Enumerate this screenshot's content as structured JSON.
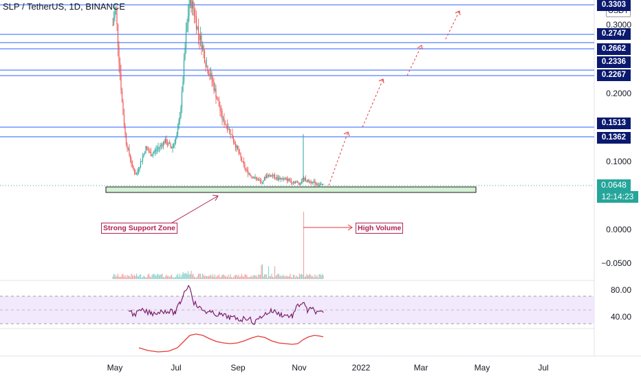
{
  "header": {
    "title": "SLP / TetherUS, 1D, BINANCE"
  },
  "currency": {
    "label": "USDT"
  },
  "price_axis": [
    "0.3000",
    "0.2000",
    "0.1000",
    "0.0000",
    "−0.0500"
  ],
  "rsi_axis": [
    "80.00",
    "40.00"
  ],
  "level_tags": [
    {
      "label": "0.3303",
      "color": "#0b1a6e"
    },
    {
      "label": "0.2747",
      "color": "#0b1a6e"
    },
    {
      "label": "0.2662",
      "color": "#0b1a6e"
    },
    {
      "label": "0.2336",
      "color": "#0b1a6e"
    },
    {
      "label": "0.2267",
      "color": "#0b1a6e"
    },
    {
      "label": "0.1513",
      "color": "#0b1a6e"
    },
    {
      "label": "0.1362",
      "color": "#0b1a6e"
    }
  ],
  "current_price": {
    "price": "0.0648",
    "countdown": "12:14:23",
    "color": "#26a69a"
  },
  "time_axis": [
    "May",
    "Jul",
    "Sep",
    "Nov",
    "2022",
    "Mar",
    "May",
    "Jul"
  ],
  "annotations": {
    "support": "Strong Support Zone",
    "volume": "High Volume"
  },
  "colors": {
    "level_line": "#2962ff",
    "up": "#26a69a",
    "down": "#ef5350",
    "rsi": "#7b1f6a",
    "osc": "#e53935",
    "arrow": "#e53935",
    "support_fill": "#d4f0d4"
  }
}
